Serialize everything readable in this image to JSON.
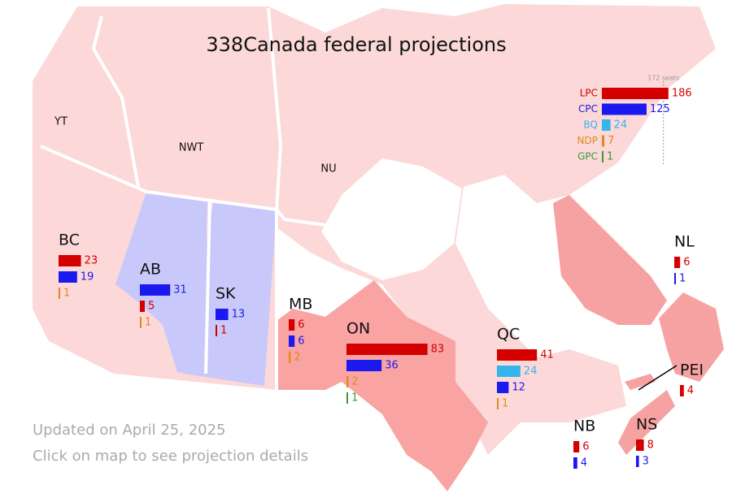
{
  "title": "338Canada federal projections",
  "majority": {
    "value": 172,
    "label": "172 seats"
  },
  "parties": [
    {
      "name": "LPC",
      "color": "#d40000",
      "seats": 186
    },
    {
      "name": "CPC",
      "color": "#1a1aee",
      "seats": 125
    },
    {
      "name": "BQ",
      "color": "#33b5ee",
      "seats": 24
    },
    {
      "name": "NDP",
      "color": "#e08a1e",
      "seats": 7
    },
    {
      "name": "GPC",
      "color": "#3a9a3a",
      "seats": 1
    }
  ],
  "territories": [
    "YT",
    "NWT",
    "NU"
  ],
  "regions": [
    {
      "name": "BC",
      "seats": {
        "LPC": 23,
        "CPC": 19,
        "NDP": 1
      }
    },
    {
      "name": "AB",
      "seats": {
        "CPC": 31,
        "LPC": 5,
        "NDP": 1
      }
    },
    {
      "name": "SK",
      "seats": {
        "CPC": 13,
        "LPC": 1
      }
    },
    {
      "name": "MB",
      "seats": {
        "LPC": 6,
        "CPC": 6,
        "NDP": 2
      }
    },
    {
      "name": "ON",
      "seats": {
        "LPC": 83,
        "CPC": 36,
        "NDP": 2,
        "GPC": 1
      }
    },
    {
      "name": "QC",
      "seats": {
        "LPC": 41,
        "BQ": 24,
        "CPC": 12,
        "NDP": 1
      }
    },
    {
      "name": "NL",
      "seats": {
        "LPC": 6,
        "CPC": 1
      }
    },
    {
      "name": "PEI",
      "seats": {
        "LPC": 4
      }
    },
    {
      "name": "NB",
      "seats": {
        "LPC": 6,
        "CPC": 4
      }
    },
    {
      "name": "NS",
      "seats": {
        "LPC": 8,
        "CPC": 3
      }
    }
  ],
  "footer": [
    "Updated on April 25, 2025",
    "Click on map to see projection details"
  ]
}
